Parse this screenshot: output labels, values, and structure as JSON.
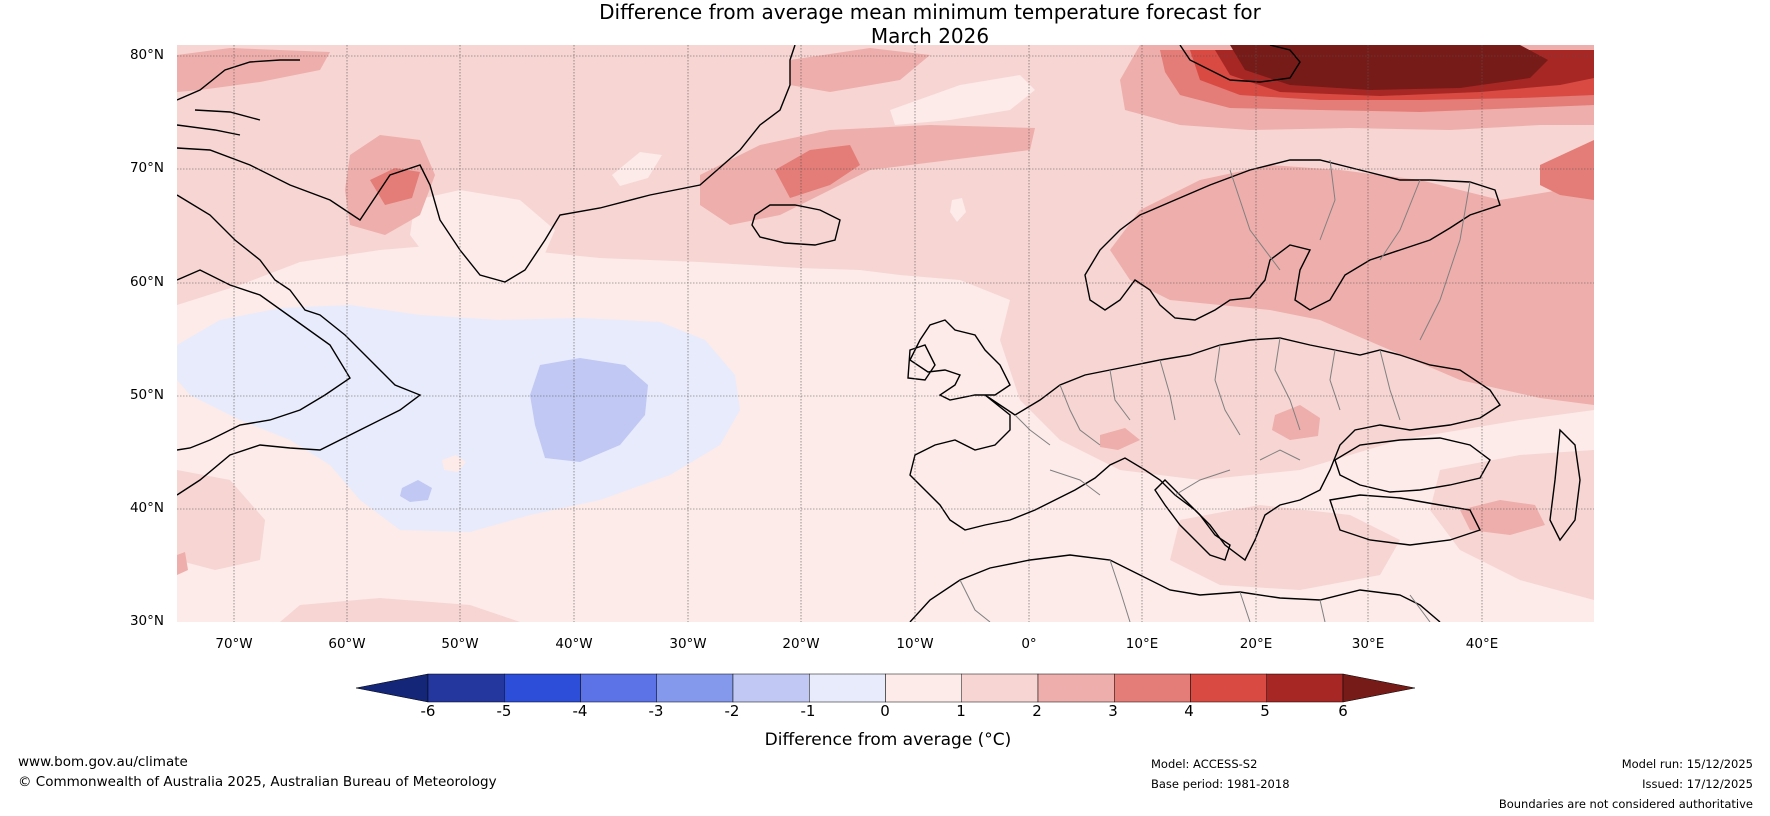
{
  "title": {
    "line1": "Difference from average mean minimum temperature forecast for",
    "line2": "March 2026"
  },
  "map": {
    "latitude_labels": [
      "80°N",
      "70°N",
      "60°N",
      "50°N",
      "40°N",
      "30°N"
    ],
    "longitude_labels": [
      "70°W",
      "60°W",
      "50°W",
      "40°W",
      "30°W",
      "20°W",
      "10°W",
      "0°",
      "10°E",
      "20°E",
      "30°E",
      "40°E"
    ],
    "gridline_color": "#555555",
    "coastline_color": "#000000",
    "border_color": "#808080"
  },
  "colorbar": {
    "ticks": [
      "-6",
      "-5",
      "-4",
      "-3",
      "-2",
      "-1",
      "0",
      "1",
      "2",
      "3",
      "4",
      "5",
      "6"
    ],
    "colors": [
      "#24379f",
      "#2c4ed8",
      "#5b73e6",
      "#8499ec",
      "#c0c8f3",
      "#e8ebfb",
      "#fcebe9",
      "#f6d5d3",
      "#eeaeab",
      "#e47c77",
      "#d84a42",
      "#a72724"
    ],
    "low_extend_color": "#142677",
    "high_extend_color": "#761b17",
    "label": "Difference from average (°C)"
  },
  "footer": {
    "website": "www.bom.gov.au/climate",
    "copyright": "© Commonwealth of Australia 2025, Australian Bureau of Meteorology",
    "model": "Model: ACCESS-S2",
    "base_period": "Base period: 1981-2018",
    "model_run": "Model run: 15/12/2025",
    "issued": "Issued: 17/12/2025",
    "disclaimer": "Boundaries are not considered authoritative"
  }
}
